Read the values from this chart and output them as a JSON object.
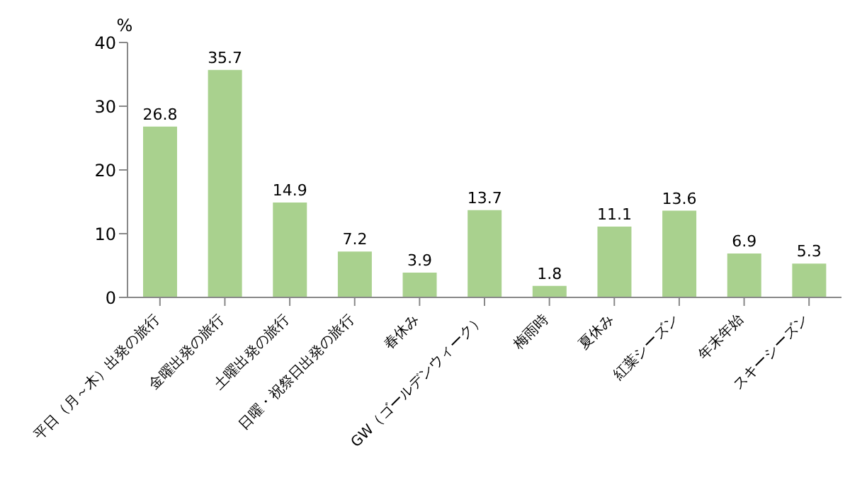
{
  "chart_data": {
    "type": "bar",
    "ylabel": "%",
    "categories": [
      "平日（月～木）出発の旅行",
      "金曜出発の旅行",
      "土曜出発の旅行",
      "日曜・祝祭日出発の旅行",
      "春休み",
      "GW（ゴールデンウィーク）",
      "梅雨時",
      "夏休み",
      "紅葉シーズン",
      "年末年始",
      "スキーシーズン"
    ],
    "values": [
      26.8,
      35.7,
      14.9,
      7.2,
      3.9,
      13.7,
      1.8,
      11.1,
      13.6,
      6.9,
      5.3
    ],
    "color": "#a9d18e",
    "ylim": [
      0,
      40
    ],
    "yticks": [
      0,
      10,
      20,
      30,
      40
    ],
    "grid": false,
    "data_labels": true
  }
}
